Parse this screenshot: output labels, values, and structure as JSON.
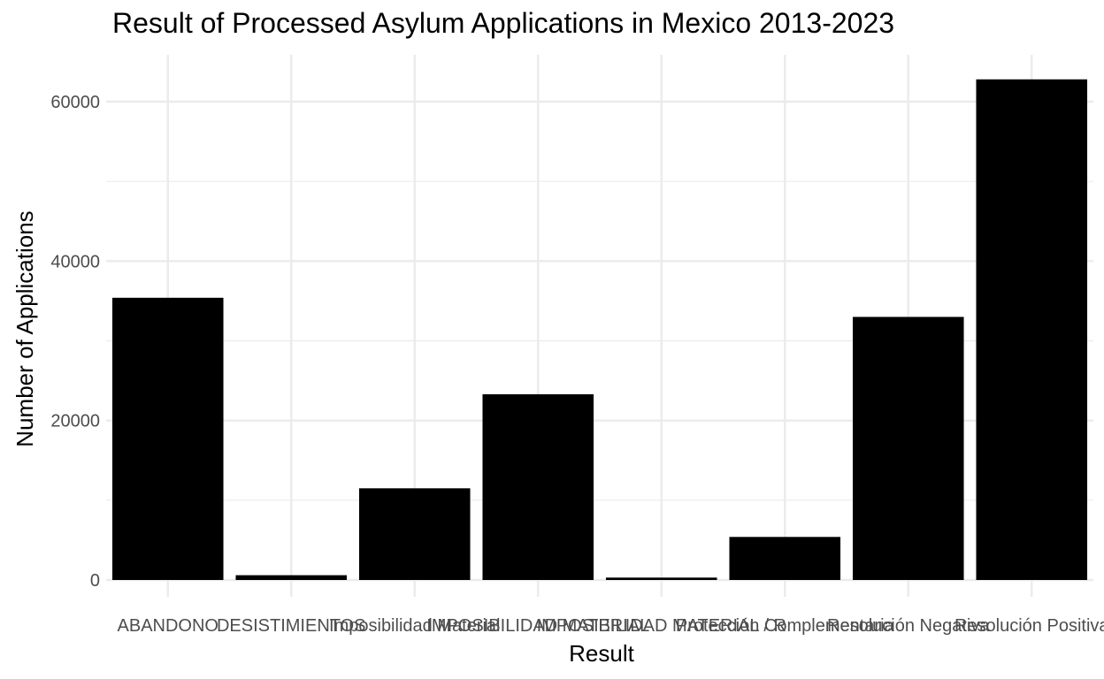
{
  "chart_data": {
    "type": "bar",
    "title": "Result of Processed Asylum Applications in Mexico 2013-2023",
    "xlabel": "Result",
    "ylabel": "Number of Applications",
    "categories": [
      "ABANDONO",
      "DESISTIMIENTOS",
      "Imposibilidad Material",
      "IMPOSIBILIDAD MATERIAL",
      "IMPOSIBILIDAD MATERIAL / R",
      "Protección Complementaria",
      "Resolución Negativa",
      "Resolución Positiva"
    ],
    "values": [
      35400,
      600,
      11500,
      23300,
      300,
      5400,
      33000,
      62800
    ],
    "ylim": [
      0,
      65000
    ],
    "yticks": [
      0,
      20000,
      40000,
      60000
    ],
    "ytick_labels": [
      "0",
      "20000",
      "40000",
      "60000"
    ],
    "grid": true,
    "bar_color": "#000000",
    "grid_color": "#ebebeb"
  }
}
